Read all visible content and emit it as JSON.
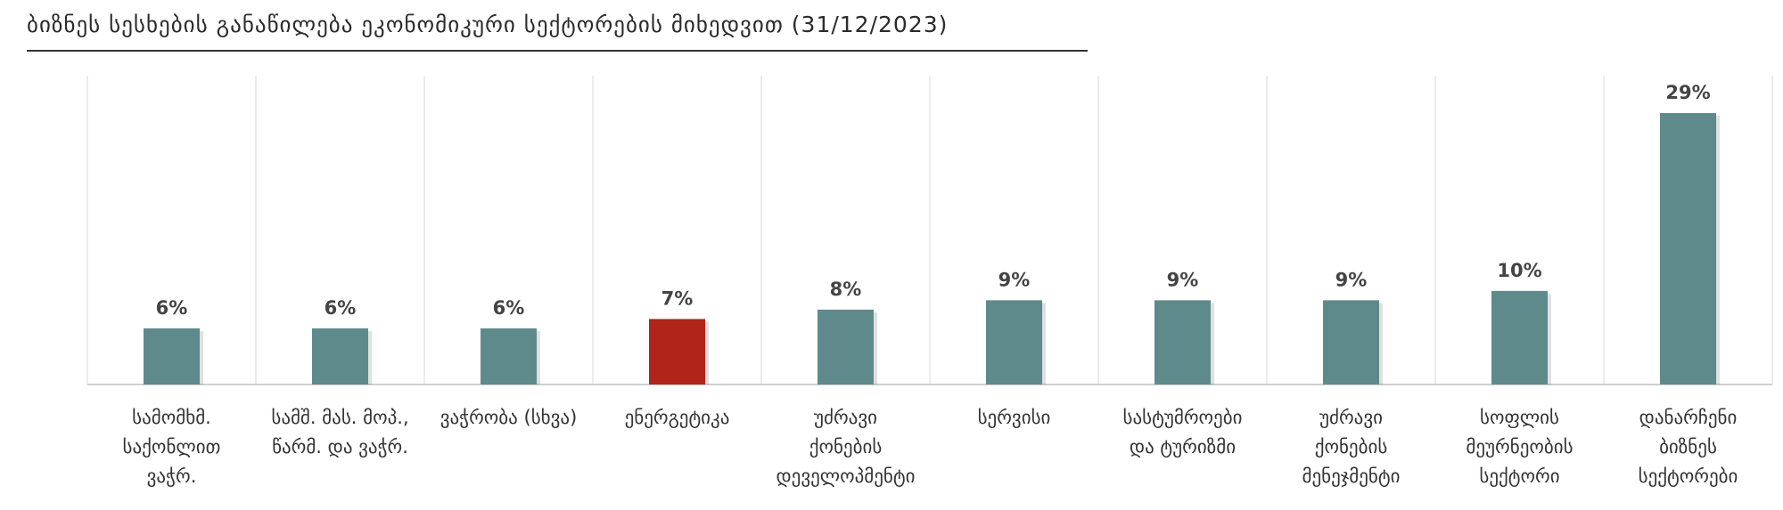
{
  "page_title": "ბიზნეს სესხების განაწილება ეკონომიკური სექტორების მიხედვით (31/12/2023)",
  "colors": {
    "bar": "#5f8a8b",
    "highlight": "#b02419",
    "grid": "#d9d9d9",
    "axis": "#bfbfbf"
  },
  "chart_data": {
    "type": "bar",
    "title": "ბიზნეს სესხების განაწილება ეკონომიკური სექტორების მიხედვით (31/12/2023)",
    "categories": [
      [
        "სამომხმ.",
        "საქონლით",
        "ვაჭრ."
      ],
      [
        "სამშ. მას. მოპ.,",
        "წარმ. და ვაჭრ."
      ],
      [
        "ვაჭრობა (სხვა)"
      ],
      [
        "ენერგეტიკა"
      ],
      [
        "უძრავი",
        "ქონების",
        "დეველოპმენტი"
      ],
      [
        "სერვისი"
      ],
      [
        "სასტუმროები",
        "და ტურიზმი"
      ],
      [
        "უძრავი",
        "ქონების",
        "მენეჯმენტი"
      ],
      [
        "სოფლის",
        "მეურნეობის",
        "სექტორი"
      ],
      [
        "დანარჩენი",
        "ბიზნეს",
        "სექტორები"
      ]
    ],
    "values": [
      6,
      6,
      6,
      7,
      8,
      9,
      9,
      9,
      10,
      29
    ],
    "value_labels": [
      "6%",
      "6%",
      "6%",
      "7%",
      "8%",
      "9%",
      "9%",
      "9%",
      "10%",
      "29%"
    ],
    "highlight_index": 3,
    "ylim": [
      0,
      33
    ],
    "grid": "vertical separators",
    "legend": "none"
  }
}
